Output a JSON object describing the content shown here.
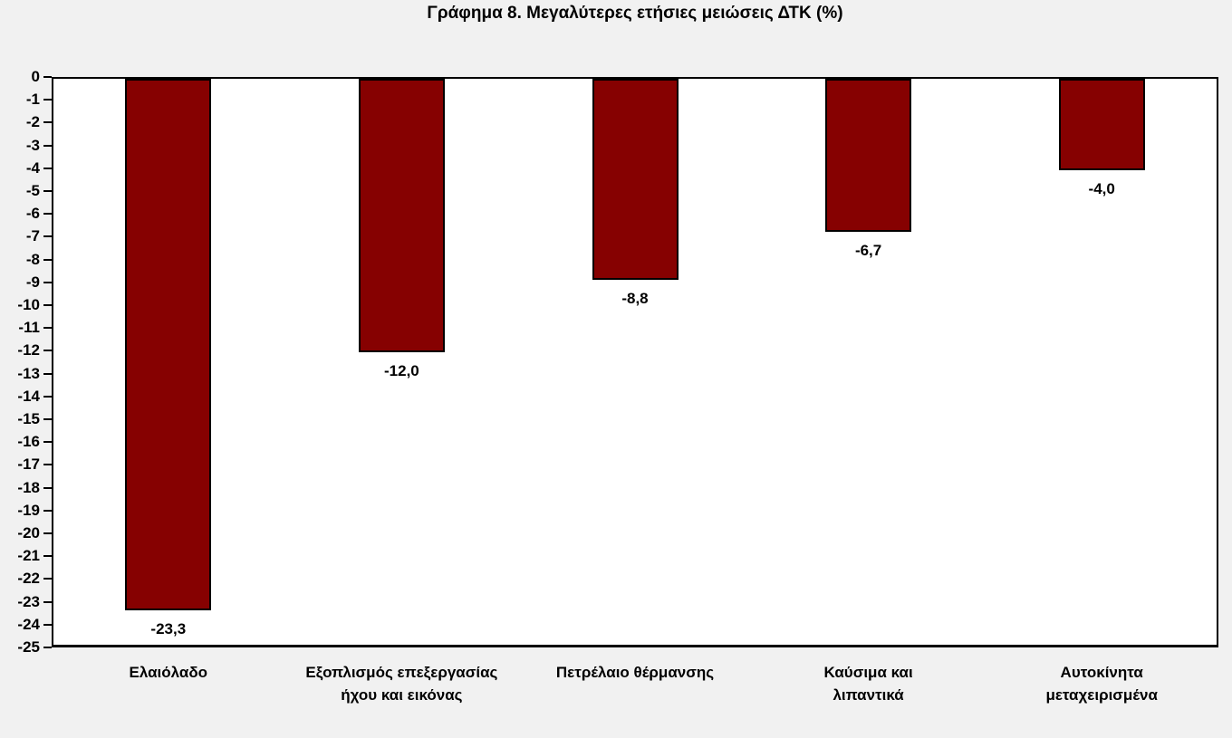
{
  "chart_data": {
    "type": "bar",
    "title": "Γράφημα 8. Μεγαλύτερες ετήσιες μειώσεις ΔΤΚ (%)",
    "categories": [
      "Ελαιόλαδο",
      "Εξοπλισμός επεξεργασίας\nήχου και εικόνας",
      "Πετρέλαιο θέρμανσης",
      "Καύσιμα και\nλιπαντικά",
      "Αυτοκίνητα\nμεταχειρισμένα"
    ],
    "values": [
      -23.3,
      -12.0,
      -8.8,
      -6.7,
      -4.0
    ],
    "value_labels": [
      "-23,3",
      "-12,0",
      "-8,8",
      "-6,7",
      "-4,0"
    ],
    "xlabel": "",
    "ylabel": "",
    "ylim": [
      0,
      -25
    ],
    "y_ticks": [
      0,
      -1,
      -2,
      -3,
      -4,
      -5,
      -6,
      -7,
      -8,
      -9,
      -10,
      -11,
      -12,
      -13,
      -14,
      -15,
      -16,
      -17,
      -18,
      -19,
      -20,
      -21,
      -22,
      -23,
      -24,
      -25
    ],
    "grid": false,
    "legend": false,
    "colors": {
      "background": "#f1f1f1",
      "plot_background": "#ffffff",
      "bar_fill": "#860101",
      "bar_border": "#000000",
      "text": "#000000"
    }
  }
}
